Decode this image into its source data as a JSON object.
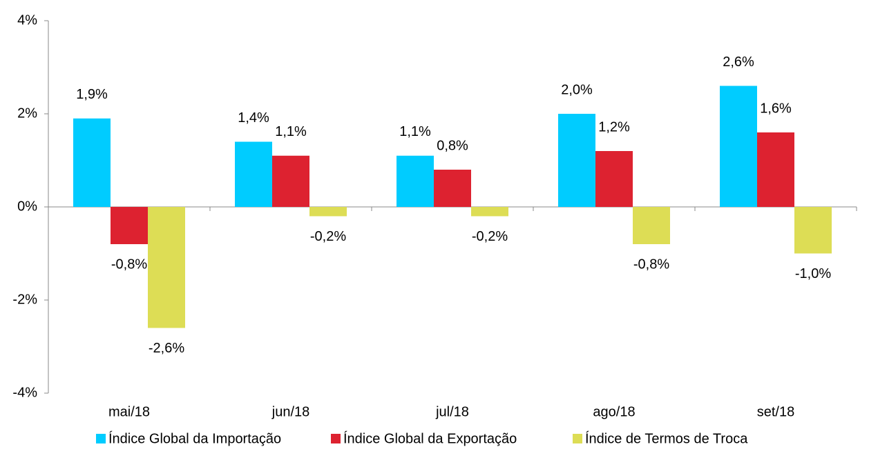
{
  "chart_data": {
    "type": "bar",
    "categories": [
      "mai/18",
      "jun/18",
      "jul/18",
      "ago/18",
      "set/18"
    ],
    "series": [
      {
        "name": "Índice Global da Importação",
        "color": "#00ccff",
        "values": [
          1.9,
          1.4,
          1.1,
          2.0,
          2.6
        ],
        "value_labels": [
          "1,9%",
          "1,4%",
          "1,1%",
          "2,0%",
          "2,6%"
        ]
      },
      {
        "name": "Índice Global da Exportação",
        "color": "#dd2230",
        "values": [
          -0.8,
          1.1,
          0.8,
          1.2,
          1.6
        ],
        "value_labels": [
          "-0,8%",
          "1,1%",
          "0,8%",
          "1,2%",
          "1,6%"
        ]
      },
      {
        "name": "Índice de Termos de Troca",
        "color": "#dddd55",
        "values": [
          -2.6,
          -0.2,
          -0.2,
          -0.8,
          -1.0
        ],
        "value_labels": [
          "-2,6%",
          "-0,2%",
          "-0,2%",
          "-0,8%",
          "-1,0%"
        ]
      }
    ],
    "ylim": [
      -4,
      4
    ],
    "yticks": [
      {
        "value": -4,
        "label": "-4%"
      },
      {
        "value": -2,
        "label": "-2%"
      },
      {
        "value": 0,
        "label": "0%"
      },
      {
        "value": 2,
        "label": "2%"
      },
      {
        "value": 4,
        "label": "4%"
      }
    ],
    "legend": "bottom"
  }
}
